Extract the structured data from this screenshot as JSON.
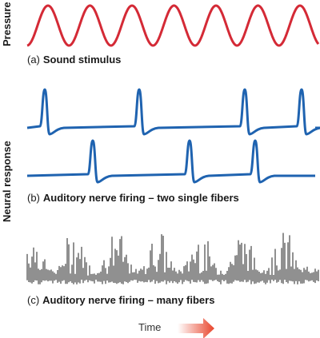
{
  "axis_labels": {
    "pressure": "Pressure",
    "neural_response": "Neural response",
    "time": "Time"
  },
  "panels": [
    {
      "letter": "(a)",
      "title": "Sound stimulus"
    },
    {
      "letter": "(b)",
      "title": "Auditory nerve firing – two single fibers"
    },
    {
      "letter": "(c)",
      "title": "Auditory nerve firing – many fibers"
    }
  ],
  "colors": {
    "stimulus": "#d42a36",
    "fiber": "#1f63b0",
    "many_fibers": "#222222",
    "arrow_start": "#ffffff",
    "arrow_end": "#e8452c"
  }
}
